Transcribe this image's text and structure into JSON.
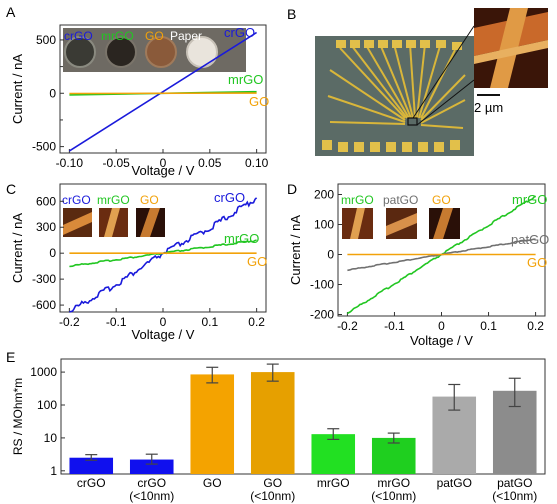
{
  "panels": {
    "A": {
      "letter": "A",
      "inset_labels": [
        "crGO",
        "mrGO",
        "GO",
        "Paper"
      ],
      "series_labels": [
        "crGO",
        "mrGO",
        "GO"
      ]
    },
    "B": {
      "letter": "B",
      "scale_bar": "2 µm"
    },
    "C": {
      "letter": "C",
      "inset_labels": [
        "crGO",
        "mrGO",
        "GO"
      ],
      "series_labels": [
        "crGO",
        "mrGO",
        "GO"
      ]
    },
    "D": {
      "letter": "D",
      "inset_labels": [
        "mrGO",
        "patGO",
        "GO"
      ],
      "series_labels": [
        "mrGO",
        "patGO",
        "GO"
      ]
    },
    "E": {
      "letter": "E"
    }
  },
  "colors": {
    "crGO": "#1a1adb",
    "mrGO": "#22c622",
    "GO": "#f2a20a",
    "patGO": "#707070",
    "crGO_bar": "#1010ee",
    "GO_bar": "#f4a300",
    "GO_bar2": "#e6a000",
    "mrGO_bar": "#22e022",
    "mrGO_bar2": "#1fcf1f",
    "patGO_bar": "#aaaaaa",
    "patGO_bar2": "#8c8c8c"
  },
  "chart_data": [
    {
      "id": "A",
      "type": "line",
      "xlabel": "Voltage / V",
      "ylabel": "Current / nA",
      "xlim": [
        -0.11,
        0.11
      ],
      "ylim": [
        -560,
        640
      ],
      "xticks": [
        -0.1,
        -0.05,
        0,
        0.05,
        0.1
      ],
      "xtick_labels": [
        "-0.10",
        "-0.05",
        "0",
        "0.05",
        "0.10"
      ],
      "yticks": [
        -500,
        0,
        500
      ],
      "ytick_labels": [
        "-500",
        "0",
        "500"
      ],
      "minor_yticks": [
        -250,
        250
      ],
      "series": [
        {
          "name": "crGO",
          "color_key": "crGO",
          "x": [
            -0.1,
            0.1
          ],
          "y": [
            -540,
            570
          ]
        },
        {
          "name": "mrGO",
          "color_key": "mrGO",
          "x": [
            -0.1,
            0.1
          ],
          "y": [
            -15,
            15
          ]
        },
        {
          "name": "GO",
          "color_key": "GO",
          "x": [
            -0.1,
            0.1
          ],
          "y": [
            -2,
            2
          ]
        }
      ]
    },
    {
      "id": "C",
      "type": "line",
      "xlabel": "Voltage / V",
      "ylabel": "Current / nA",
      "xlim": [
        -0.22,
        0.22
      ],
      "ylim": [
        -680,
        800
      ],
      "xticks": [
        -0.2,
        -0.1,
        0,
        0.1,
        0.2
      ],
      "xtick_labels": [
        "-0.2",
        "-0.1",
        "0",
        "0.1",
        "0.2"
      ],
      "yticks": [
        -600,
        -300,
        0,
        300,
        600
      ],
      "ytick_labels": [
        "-600",
        "-300",
        "0",
        "300",
        "600"
      ],
      "series": [
        {
          "name": "crGO",
          "color_key": "crGO",
          "x": [
            -0.2,
            -0.1,
            0,
            0.1,
            0.2
          ],
          "y": [
            -670,
            -360,
            0,
            290,
            640
          ]
        },
        {
          "name": "mrGO",
          "color_key": "mrGO",
          "x": [
            -0.2,
            0.2
          ],
          "y": [
            -150,
            150
          ]
        },
        {
          "name": "GO",
          "color_key": "GO",
          "x": [
            -0.2,
            0.2
          ],
          "y": [
            0,
            0
          ]
        }
      ]
    },
    {
      "id": "D",
      "type": "line",
      "xlabel": "Voltage / V",
      "ylabel": "Current / nA",
      "xlim": [
        -0.22,
        0.22
      ],
      "ylim": [
        -205,
        235
      ],
      "xticks": [
        -0.2,
        -0.1,
        0,
        0.1,
        0.2
      ],
      "xtick_labels": [
        "-0.2",
        "-0.1",
        "0",
        "0.1",
        "0.2"
      ],
      "yticks": [
        -200,
        -100,
        0,
        100,
        200
      ],
      "ytick_labels": [
        "-200",
        "-100",
        "0",
        "100",
        "200"
      ],
      "series": [
        {
          "name": "mrGO",
          "color_key": "mrGO",
          "x": [
            -0.2,
            0.2
          ],
          "y": [
            -195,
            195
          ]
        },
        {
          "name": "patGO",
          "color_key": "patGO",
          "x": [
            -0.2,
            0.2
          ],
          "y": [
            -52,
            52
          ]
        },
        {
          "name": "GO",
          "color_key": "GO",
          "x": [
            -0.2,
            0.2
          ],
          "y": [
            0,
            0
          ]
        }
      ]
    },
    {
      "id": "E",
      "type": "bar",
      "ylabel": "RS / MOhm*m",
      "log_y": true,
      "ylim": [
        0.8,
        2500
      ],
      "yticks": [
        1,
        10,
        100,
        1000
      ],
      "ytick_labels": [
        "1",
        "10",
        "100",
        "1000"
      ],
      "categories": [
        "crGO",
        "crGO\n(<10nm)",
        "GO",
        "GO\n(<10nm)",
        "mrGO",
        "mrGO\n(<10nm)",
        "patGO",
        "patGO\n(<10nm)"
      ],
      "values": [
        2.5,
        2.2,
        850,
        1000,
        13,
        10,
        180,
        270
      ],
      "err_low": [
        2.1,
        1.6,
        470,
        530,
        9,
        7,
        70,
        90
      ],
      "err_high": [
        3.1,
        3.2,
        1400,
        1750,
        19,
        14,
        420,
        650
      ],
      "color_keys": [
        "crGO_bar",
        "crGO_bar",
        "GO_bar",
        "GO_bar2",
        "mrGO_bar",
        "mrGO_bar2",
        "patGO_bar",
        "patGO_bar2"
      ]
    }
  ]
}
